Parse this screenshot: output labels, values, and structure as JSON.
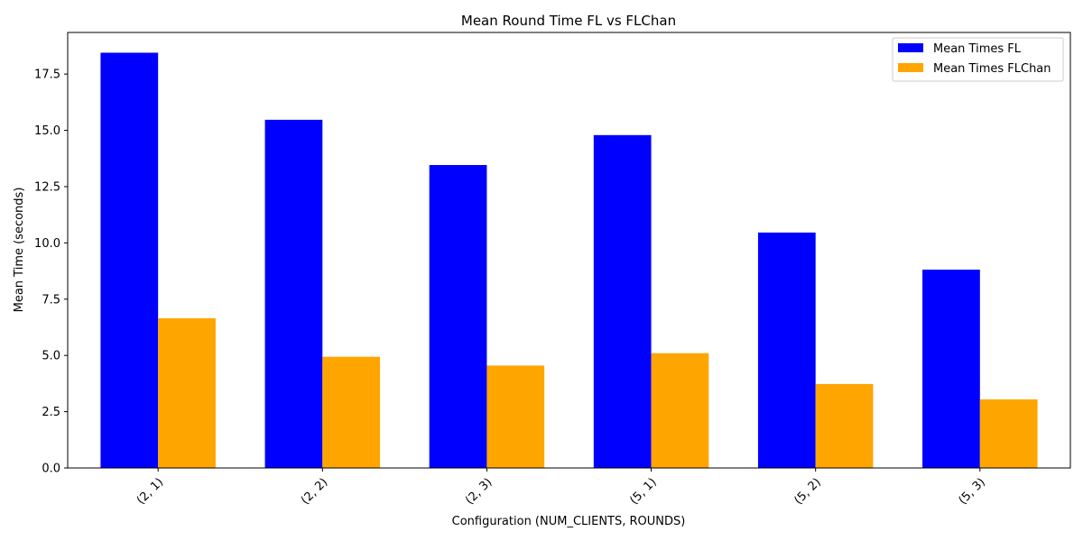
{
  "chart_data": {
    "type": "bar",
    "title": "Mean Round Time FL vs FLChan",
    "xlabel": "Configuration (NUM_CLIENTS, ROUNDS)",
    "ylabel": "Mean Time (seconds)",
    "categories": [
      "(2, 1)",
      "(2, 2)",
      "(2, 3)",
      "(5, 1)",
      "(5, 2)",
      "(5, 3)"
    ],
    "series": [
      {
        "name": "Mean Times FL",
        "color": "#0000ff",
        "values": [
          18.45,
          15.47,
          13.46,
          14.79,
          10.46,
          8.81
        ]
      },
      {
        "name": "Mean Times FLChan",
        "color": "#ffa500",
        "values": [
          6.65,
          4.94,
          4.55,
          5.1,
          3.73,
          3.05
        ]
      }
    ],
    "ylim": [
      0,
      19.35
    ],
    "yticks": [
      0.0,
      2.5,
      5.0,
      7.5,
      10.0,
      12.5,
      15.0,
      17.5
    ],
    "ytick_labels": [
      "0.0",
      "2.5",
      "5.0",
      "7.5",
      "10.0",
      "12.5",
      "15.0",
      "17.5"
    ],
    "legend_position": "top-right",
    "grid": false
  }
}
